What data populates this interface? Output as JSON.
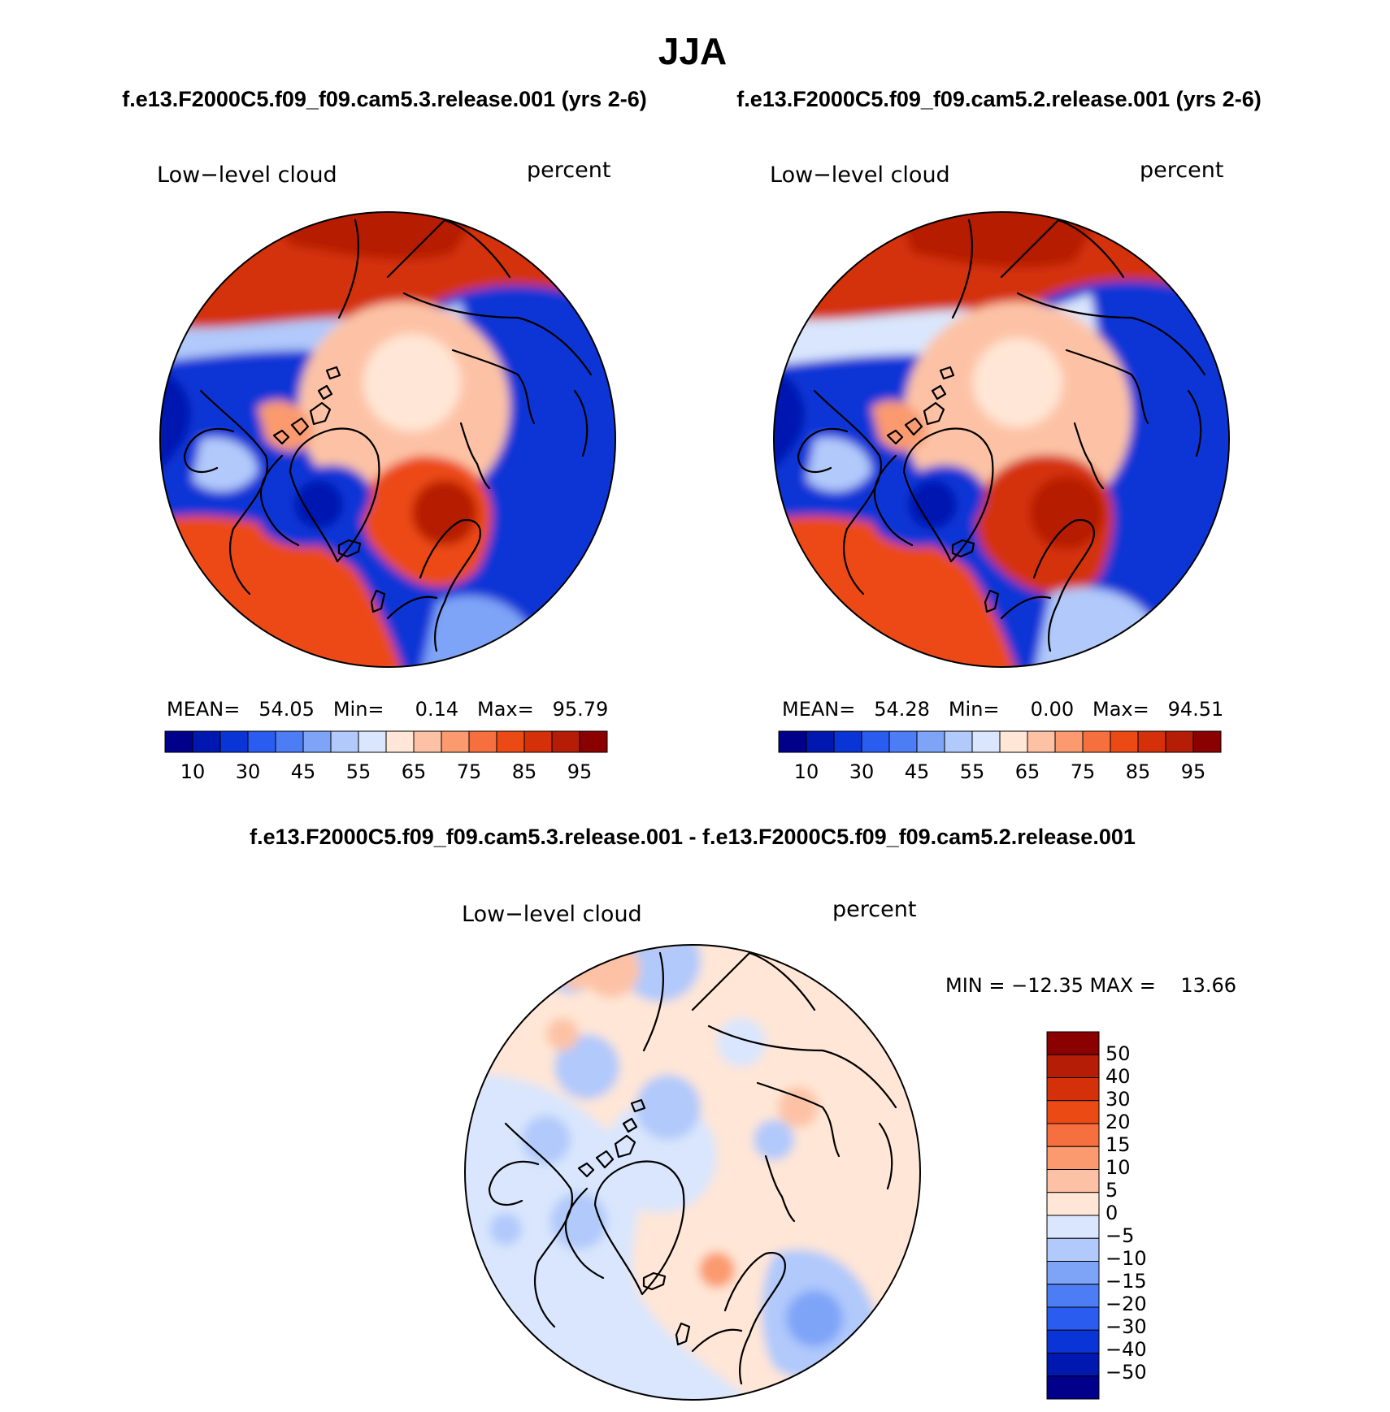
{
  "figure": {
    "season": "JJA",
    "case_a": "f.e13.F2000C5.f09_f09.cam5.3.release.001 (yrs 2-6)",
    "case_b": "f.e13.F2000C5.f09_f09.cam5.2.release.001 (yrs 2-6)",
    "diff_title": "f.e13.F2000C5.f09_f09.cam5.3.release.001 - f.e13.F2000C5.f09_f09.cam5.2.release.001"
  },
  "panels": [
    {
      "variable": "Low−level cloud",
      "units": "percent",
      "stats_text": "MEAN=   54.05   Min=     0.14   Max=   95.79",
      "colorbar_ticks": [
        "10",
        "30",
        "45",
        "55",
        "65",
        "75",
        "85",
        "95"
      ]
    },
    {
      "variable": "Low−level cloud",
      "units": "percent",
      "stats_text": "MEAN=   54.28   Min=     0.00   Max=   94.51",
      "colorbar_ticks": [
        "10",
        "30",
        "45",
        "55",
        "65",
        "75",
        "85",
        "95"
      ]
    },
    {
      "variable": "Low−level cloud",
      "units": "percent",
      "stats_text": "MIN = −12.35 MAX =    13.66",
      "colorbar_ticks": [
        "50",
        "40",
        "30",
        "20",
        "15",
        "10",
        "5",
        "0",
        "−5",
        "−10",
        "−15",
        "−20",
        "−30",
        "−40",
        "−50"
      ]
    }
  ],
  "colors": {
    "abs_scale": [
      "#00008b",
      "#0017b0",
      "#0a35d6",
      "#2a5cf0",
      "#4d7df5",
      "#7ea4f8",
      "#b1c9fb",
      "#d9e6fd",
      "#ffe6d6",
      "#fdc2a5",
      "#fa9a6e",
      "#f56f3f",
      "#ec4a14",
      "#d4300a",
      "#b51d06",
      "#8b0000"
    ],
    "diff_scale": [
      "#8b0000",
      "#b51d06",
      "#d4300a",
      "#ec4a14",
      "#f56f3f",
      "#fa9a6e",
      "#fdc2a5",
      "#ffe6d6",
      "#d9e6fd",
      "#b1c9fb",
      "#7ea4f8",
      "#4d7df5",
      "#2a5cf0",
      "#0a35d6",
      "#0017b0",
      "#00008b"
    ]
  }
}
